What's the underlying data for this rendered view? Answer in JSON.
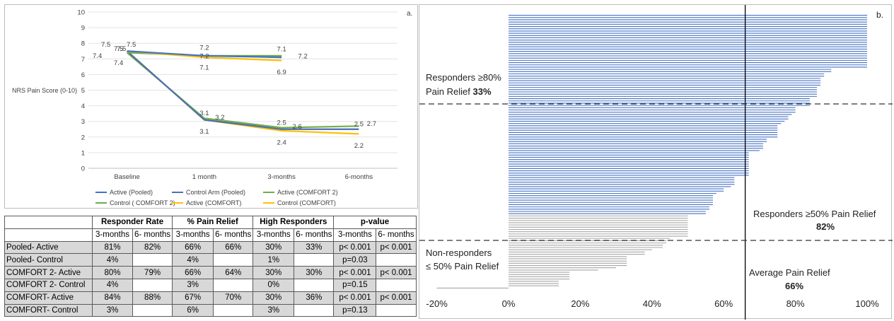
{
  "panel_a": {
    "label": "a.",
    "chart_data": {
      "type": "line",
      "title": "",
      "ylabel": "NRS Pain Score (0-10)",
      "xlabel": "",
      "categories": [
        "Baseline",
        "1 month",
        "3-months",
        "6-months"
      ],
      "ylim": [
        0,
        10
      ],
      "yticks": [
        "0",
        "1",
        "2",
        "3",
        "4",
        "5",
        "6",
        "7",
        "8",
        "9",
        "10"
      ],
      "grid": true,
      "legend_position": "bottom",
      "series": [
        {
          "name": "Active (Pooled)",
          "color": "#4472c4",
          "values": [
            7.5,
            7.2,
            7.1,
            null
          ]
        },
        {
          "name": "Control Arm (Pooled)",
          "color": "#4a6fb5",
          "values": [
            7.5,
            3.1,
            2.5,
            2.5
          ]
        },
        {
          "name": "Active (COMFORT 2)",
          "color": "#70ad47",
          "values": [
            7.4,
            7.2,
            7.2,
            null
          ]
        },
        {
          "name": "Control ( COMFORT 2)",
          "color": "#70ad47",
          "values": [
            7.4,
            3.2,
            2.6,
            2.7
          ]
        },
        {
          "name": "Active (COMFORT)",
          "color": "#ffc000",
          "values": [
            7.5,
            7.1,
            6.9,
            null
          ]
        },
        {
          "name": "Control (COMFORT)",
          "color": "#ffc000",
          "values": [
            7.5,
            3.1,
            2.4,
            2.2
          ]
        }
      ],
      "data_labels": [
        {
          "text": "7.5",
          "x": "Baseline",
          "y": 7.5
        },
        {
          "text": "7.5",
          "x": "Baseline",
          "y": 7.5
        },
        {
          "text": "7.5",
          "x": "Baseline",
          "y": 7.5
        },
        {
          "text": "7.5",
          "x": "Baseline",
          "y": 7.5
        },
        {
          "text": "7.4",
          "x": "Baseline",
          "y": 7.4
        },
        {
          "text": "7.4",
          "x": "Baseline",
          "y": 7.4
        },
        {
          "text": "7.2",
          "x": "1 month",
          "y": 7.2
        },
        {
          "text": "7.2",
          "x": "1 month",
          "y": 7.2
        },
        {
          "text": "7.1",
          "x": "1 month",
          "y": 7.1
        },
        {
          "text": "3.1",
          "x": "1 month",
          "y": 3.1
        },
        {
          "text": "3.2",
          "x": "1 month",
          "y": 3.2
        },
        {
          "text": "3.1",
          "x": "1 month",
          "y": 3.1
        },
        {
          "text": "7.1",
          "x": "3-months",
          "y": 7.1
        },
        {
          "text": "7.2",
          "x": "3-months",
          "y": 7.2
        },
        {
          "text": "6.9",
          "x": "3-months",
          "y": 6.9
        },
        {
          "text": "2.5",
          "x": "3-months",
          "y": 2.5
        },
        {
          "text": "2.6",
          "x": "3-months",
          "y": 2.6
        },
        {
          "text": "2.4",
          "x": "3-months",
          "y": 2.4
        },
        {
          "text": "2.5",
          "x": "6-months",
          "y": 2.5
        },
        {
          "text": "2.7",
          "x": "6-months",
          "y": 2.7
        },
        {
          "text": "2.2",
          "x": "6-months",
          "y": 2.2
        }
      ]
    }
  },
  "table": {
    "group_headers": [
      "Responder Rate",
      "% Pain Relief",
      "High Responders",
      "p-value"
    ],
    "sub_headers": [
      "3-months",
      "6- months",
      "3-months",
      "6- months",
      "3-months",
      "6- months",
      "3-months",
      "6- months"
    ],
    "rows": [
      {
        "label": "Pooled- Active",
        "values": [
          "81%",
          "82%",
          "66%",
          "66%",
          "30%",
          "33%",
          "p< 0.001",
          "p< 0.001"
        ]
      },
      {
        "label": "Pooled- Control",
        "values": [
          "4%",
          "",
          "4%",
          "",
          "1%",
          "",
          "p=0.03",
          ""
        ]
      },
      {
        "label": "COMFORT 2- Active",
        "values": [
          "80%",
          "79%",
          "66%",
          "64%",
          "30%",
          "30%",
          "p< 0.001",
          "p< 0.001"
        ]
      },
      {
        "label": "COMFORT 2- Control",
        "values": [
          "4%",
          "",
          "3%",
          "",
          "0%",
          "",
          "p=0.15",
          ""
        ]
      },
      {
        "label": "COMFORT- Active",
        "values": [
          "84%",
          "88%",
          "67%",
          "70%",
          "30%",
          "36%",
          "p< 0.001",
          "p< 0.001"
        ]
      },
      {
        "label": "COMFORT- Control",
        "values": [
          "3%",
          "",
          "6%",
          "",
          "3%",
          "",
          "p=0.13",
          ""
        ]
      }
    ]
  },
  "panel_b": {
    "label": "b.",
    "chart_data": {
      "type": "bar",
      "orientation": "horizontal",
      "title": "",
      "xlabel": "",
      "ylabel": "",
      "xlim": [
        -0.2,
        1.0
      ],
      "xticks": [
        "-20%",
        "0%",
        "20%",
        "40%",
        "60%",
        "80%",
        "100%"
      ],
      "colors": {
        "responder": "#4472c4",
        "non_responder": "#a6a6a6"
      },
      "reference_lines": {
        "average_pain_relief": 0.66,
        "threshold_80": 0.8,
        "threshold_50": 0.5
      },
      "values": [
        1.0,
        1.0,
        1.0,
        1.0,
        1.0,
        1.0,
        1.0,
        1.0,
        1.0,
        1.0,
        1.0,
        1.0,
        1.0,
        1.0,
        1.0,
        1.0,
        1.0,
        1.0,
        1.0,
        1.0,
        1.0,
        1.0,
        1.0,
        1.0,
        0.9,
        0.9,
        0.88,
        0.88,
        0.87,
        0.87,
        0.87,
        0.87,
        0.86,
        0.86,
        0.86,
        0.86,
        0.86,
        0.84,
        0.84,
        0.84,
        0.84,
        0.8,
        0.8,
        0.8,
        0.79,
        0.78,
        0.78,
        0.77,
        0.76,
        0.75,
        0.75,
        0.75,
        0.75,
        0.75,
        0.75,
        0.72,
        0.72,
        0.71,
        0.71,
        0.71,
        0.7,
        0.67,
        0.67,
        0.67,
        0.67,
        0.67,
        0.67,
        0.67,
        0.67,
        0.67,
        0.67,
        0.67,
        0.63,
        0.63,
        0.63,
        0.63,
        0.62,
        0.6,
        0.6,
        0.58,
        0.57,
        0.57,
        0.57,
        0.57,
        0.57,
        0.56,
        0.56,
        0.55,
        0.55,
        0.5,
        0.5,
        0.5,
        0.5,
        0.5,
        0.5,
        0.5,
        0.5,
        0.5,
        0.5,
        0.45,
        0.44,
        0.44,
        0.43,
        0.43,
        0.4,
        0.38,
        0.38,
        0.33,
        0.33,
        0.33,
        0.33,
        0.33,
        0.3,
        0.25,
        0.17,
        0.17,
        0.17,
        0.17,
        0.14,
        0.14,
        0.14,
        -0.2
      ],
      "annotations": {
        "responders_80_line1": "Responders ≥80%",
        "responders_80_line2": "Pain Relief",
        "responders_80_value": "33%",
        "responders_50_line1": "Responders ≥50% Pain Relief",
        "responders_50_value": "82%",
        "non_responders_line1": "Non-responders",
        "non_responders_line2": "≤ 50% Pain Relief",
        "average_line1": "Average Pain Relief",
        "average_value": "66%"
      }
    }
  }
}
